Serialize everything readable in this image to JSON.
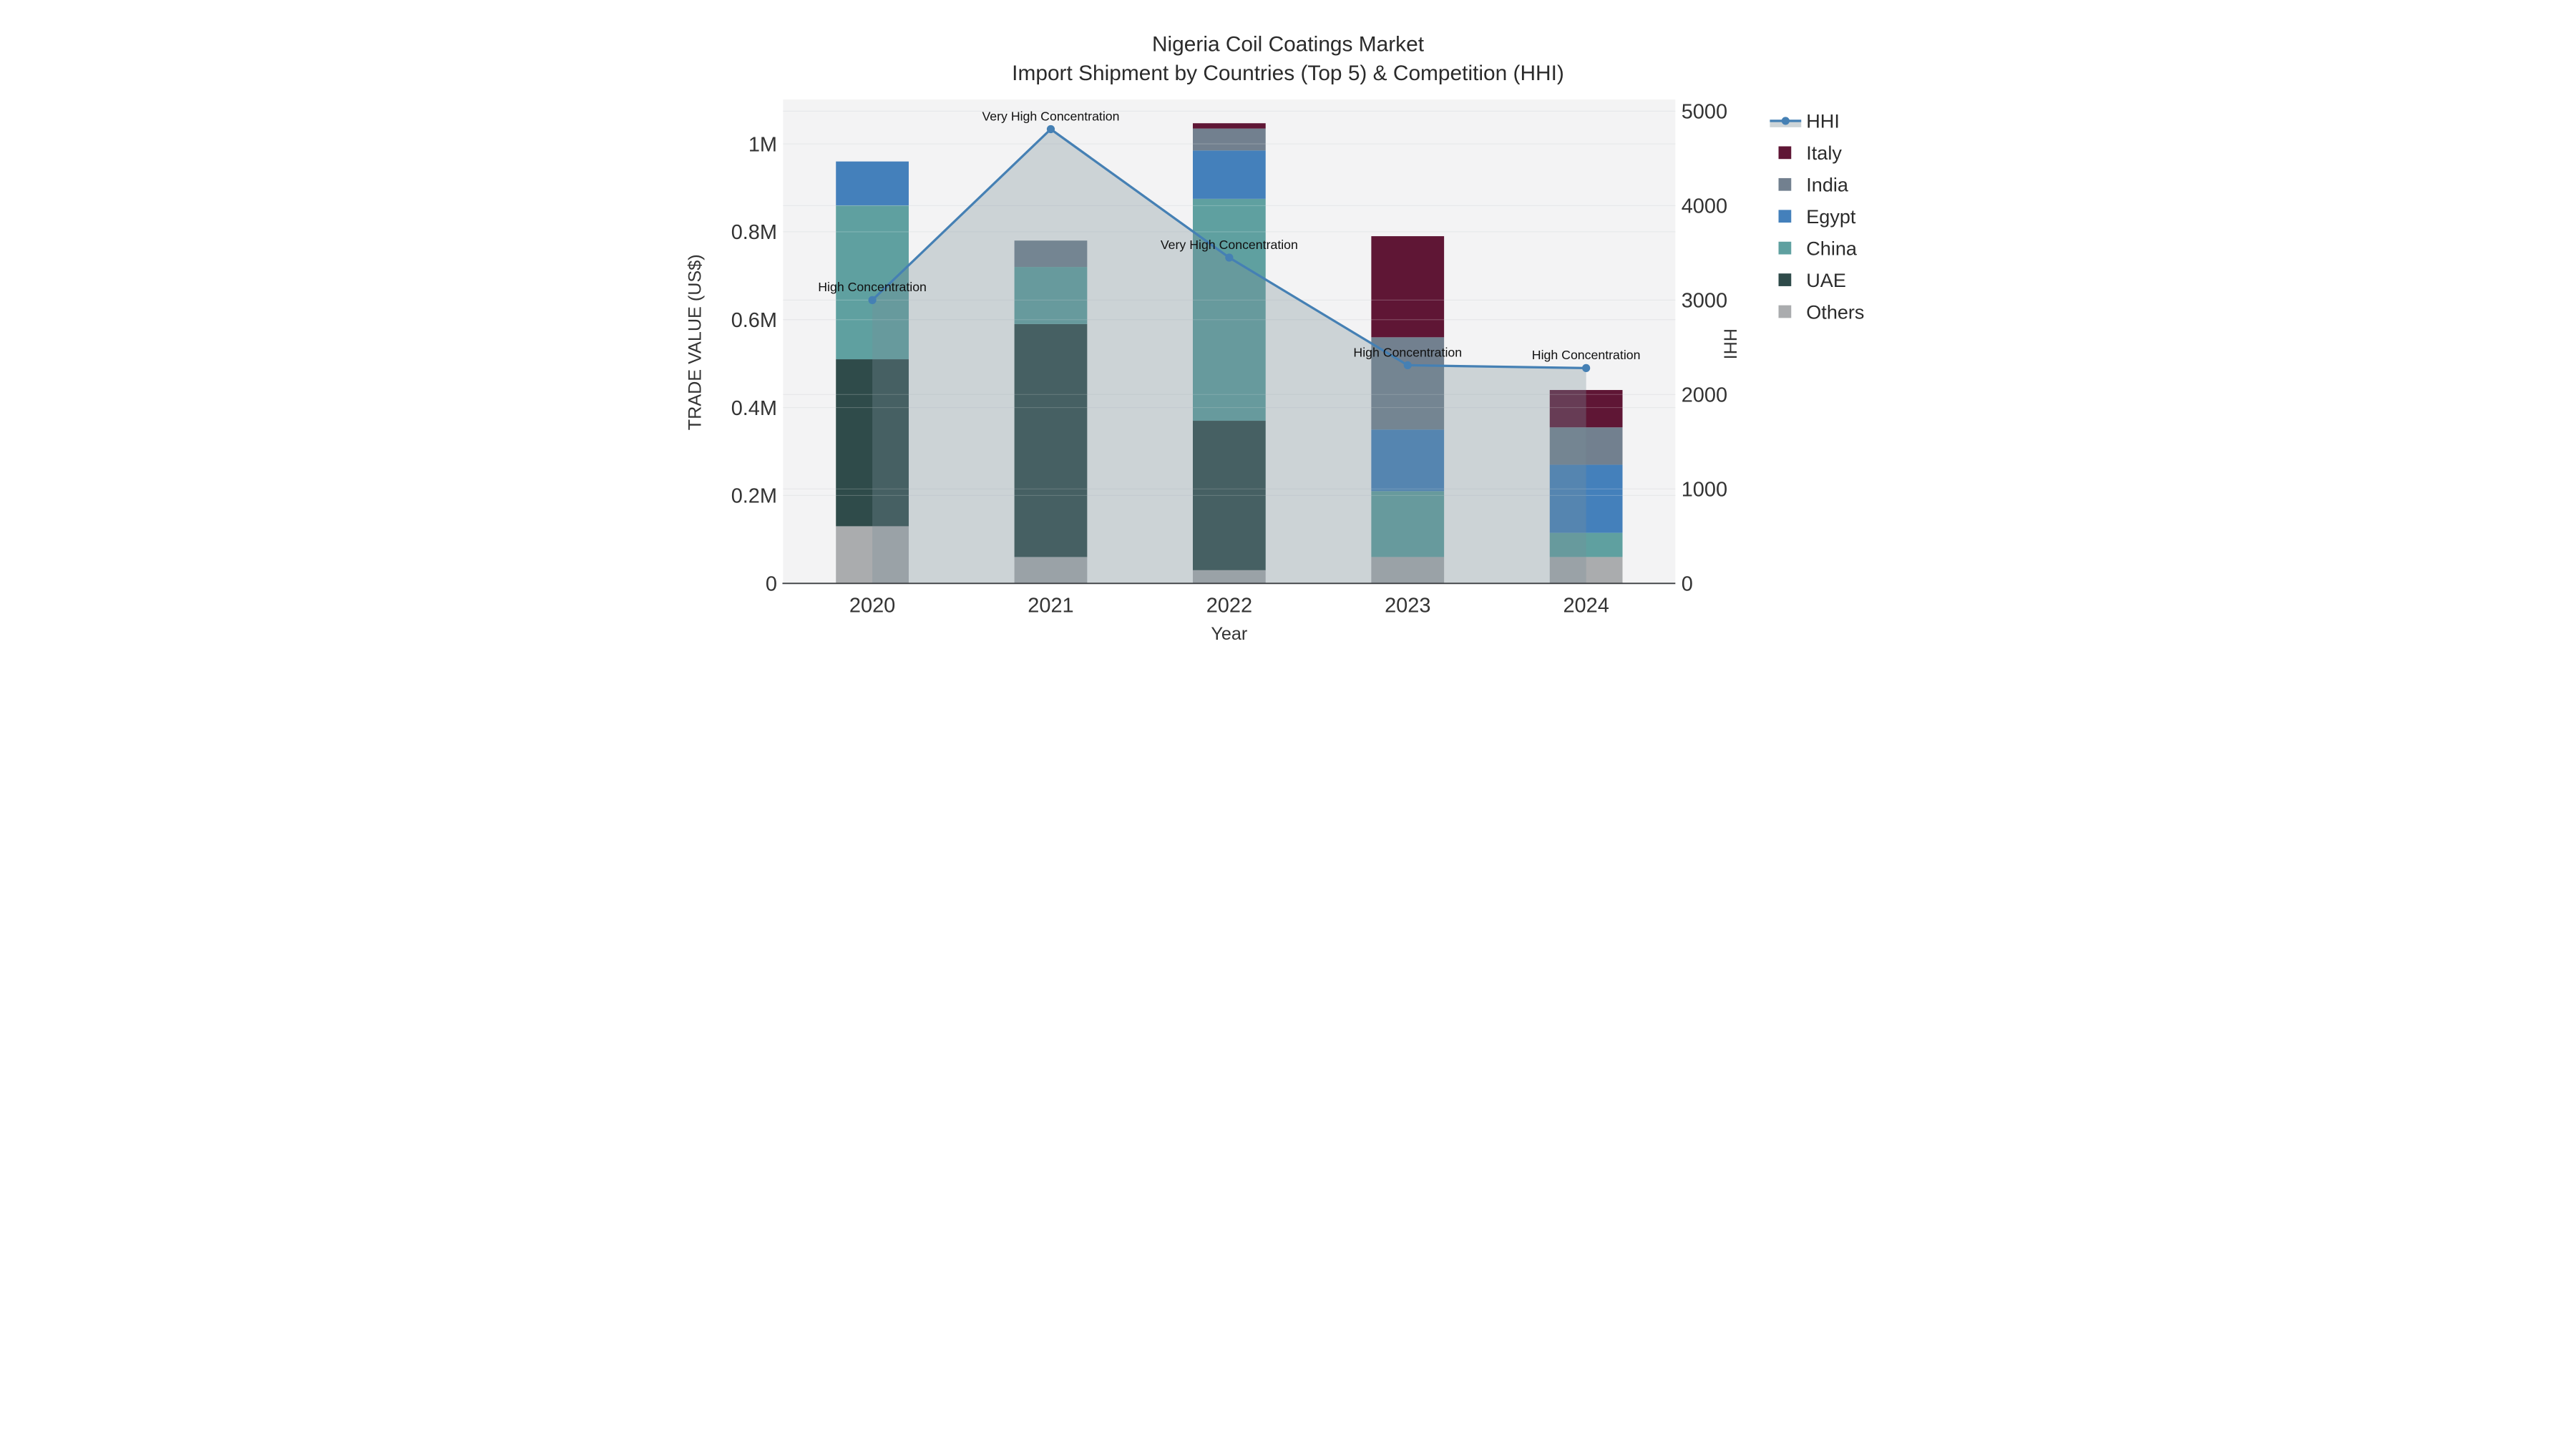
{
  "title": {
    "line1": "Nigeria Coil Coatings Market",
    "line2": "Import Shipment by Countries (Top 5) & Competition (HHI)"
  },
  "chart_data": {
    "type": "combo-stacked-bar-line",
    "categories": [
      "2020",
      "2021",
      "2022",
      "2023",
      "2024"
    ],
    "bar_value_unit": "M US$",
    "series": [
      {
        "name": "Others",
        "color": "#aaacae",
        "values": [
          0.13,
          0.06,
          0.03,
          0.06,
          0.06
        ]
      },
      {
        "name": "UAE",
        "color": "#2f4b4a",
        "values": [
          0.38,
          0.53,
          0.34,
          0,
          0
        ]
      },
      {
        "name": "China",
        "color": "#5fa0a0",
        "values": [
          0.35,
          0.13,
          0.505,
          0.15,
          0.055
        ]
      },
      {
        "name": "Egypt",
        "color": "#4480bb",
        "values": [
          0.1,
          0,
          0.11,
          0.14,
          0.155
        ]
      },
      {
        "name": "India",
        "color": "#72808f",
        "values": [
          0,
          0.06,
          0.05,
          0.21,
          0.085
        ]
      },
      {
        "name": "Italy",
        "color": "#5f1635",
        "values": [
          0,
          0,
          0.012,
          0.23,
          0.085
        ]
      }
    ],
    "line_series": {
      "name": "HHI",
      "color": "#4580b4",
      "area_fill": "rgba(120,143,153,0.32)",
      "values": [
        3000,
        4810,
        3450,
        2310,
        2280
      ]
    },
    "annotations": [
      {
        "x": "2020",
        "text": "High Concentration"
      },
      {
        "x": "2021",
        "text": "Very High Concentration"
      },
      {
        "x": "2022",
        "text": "Very High Concentration"
      },
      {
        "x": "2023",
        "text": "High Concentration"
      },
      {
        "x": "2024",
        "text": "High Concentration"
      }
    ],
    "xlabel": "Year",
    "ylabel_left": "TRADE VALUE (US$)",
    "ylabel_right": "HHI",
    "y_left_ticks": [
      {
        "v": 0,
        "label": "0"
      },
      {
        "v": 0.2,
        "label": "0.2M"
      },
      {
        "v": 0.4,
        "label": "0.4M"
      },
      {
        "v": 0.6,
        "label": "0.6M"
      },
      {
        "v": 0.8,
        "label": "0.8M"
      },
      {
        "v": 1.0,
        "label": "1M"
      }
    ],
    "y_right_ticks": [
      {
        "v": 0,
        "label": "0"
      },
      {
        "v": 1000,
        "label": "1000"
      },
      {
        "v": 2000,
        "label": "2000"
      },
      {
        "v": 3000,
        "label": "3000"
      },
      {
        "v": 4000,
        "label": "4000"
      },
      {
        "v": 5000,
        "label": "5000"
      }
    ],
    "y_left_max": 1.101,
    "y_right_max": 5124,
    "grid": true,
    "legend_position": "right"
  },
  "legend": {
    "items": [
      {
        "label": "HHI",
        "type": "line",
        "color": "#4580b4",
        "fill": "#cdd4d7"
      },
      {
        "label": "Italy",
        "type": "swatch",
        "color": "#5f1635"
      },
      {
        "label": "India",
        "type": "swatch",
        "color": "#72808f"
      },
      {
        "label": "Egypt",
        "type": "swatch",
        "color": "#4480bb"
      },
      {
        "label": "China",
        "type": "swatch",
        "color": "#5fa0a0"
      },
      {
        "label": "UAE",
        "type": "swatch",
        "color": "#2f4b4a"
      },
      {
        "label": "Others",
        "type": "swatch",
        "color": "#aaacae"
      }
    ]
  },
  "colors": {
    "background": "#ffffff",
    "plot_background": "#f3f3f4",
    "grid": "#e3e5e7",
    "grid_over_traces": "rgba(244,245,246,0.22)",
    "axis_line": "#3c3f42"
  }
}
